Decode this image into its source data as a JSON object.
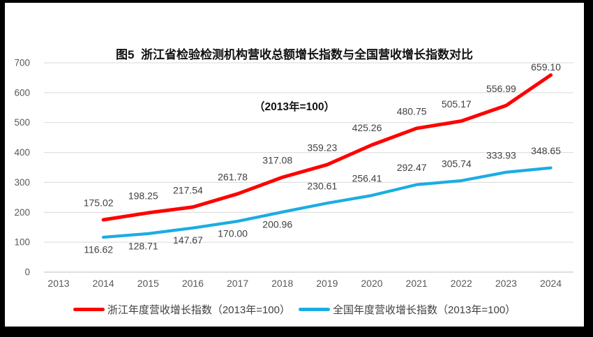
{
  "frame": {
    "border_color": "#000000",
    "card_background": "#ffffff"
  },
  "title": {
    "line1": "图5  浙江省检验检测机构营收总额增长指数与全国营收增长指数对比",
    "line2": "（2013年=100）"
  },
  "chart_data": {
    "type": "line",
    "categories": [
      "2013",
      "2014",
      "2015",
      "2016",
      "2017",
      "2018",
      "2019",
      "2020",
      "2021",
      "2022",
      "2023",
      "2024"
    ],
    "ylim": [
      0,
      700
    ],
    "yticks": [
      0,
      100,
      200,
      300,
      400,
      500,
      600,
      700
    ],
    "grid": true,
    "legend_position": "bottom",
    "series": [
      {
        "id": "zhejiang-index",
        "name": "浙江年度营收增长指数（2013年=100）",
        "color": "#FF0000",
        "values": [
          null,
          175.02,
          198.25,
          217.54,
          261.78,
          317.08,
          359.23,
          425.26,
          480.75,
          505.17,
          556.99,
          659.1
        ],
        "labels": [
          "",
          "175.02",
          "198.25",
          "217.54",
          "261.78",
          "317.08",
          "359.23",
          "425.26",
          "480.75",
          "505.17",
          "556.99",
          "659.10"
        ],
        "label_positions": [
          "",
          "above",
          "above",
          "above",
          "above",
          "above",
          "above",
          "above",
          "above",
          "above",
          "above",
          "above-near"
        ]
      },
      {
        "id": "national-index",
        "name": "全国年度营收增长指数（2013年=100）",
        "color": "#1CACE3",
        "values": [
          null,
          116.62,
          128.71,
          147.67,
          170.0,
          200.96,
          230.61,
          256.41,
          292.47,
          305.74,
          333.93,
          348.65
        ],
        "labels": [
          "",
          "116.62",
          "128.71",
          "147.67",
          "170.00",
          "200.96",
          "230.61",
          "256.41",
          "292.47",
          "305.74",
          "333.93",
          "348.65"
        ],
        "label_positions": [
          "",
          "below",
          "below",
          "below",
          "below",
          "below",
          "above",
          "above",
          "above",
          "above",
          "above",
          "above"
        ]
      }
    ],
    "style": {
      "axis_color": "#bfbfbf",
      "grid_color": "#d9d9d9",
      "tick_label_color": "#595959",
      "data_label_color": "#404040"
    }
  }
}
